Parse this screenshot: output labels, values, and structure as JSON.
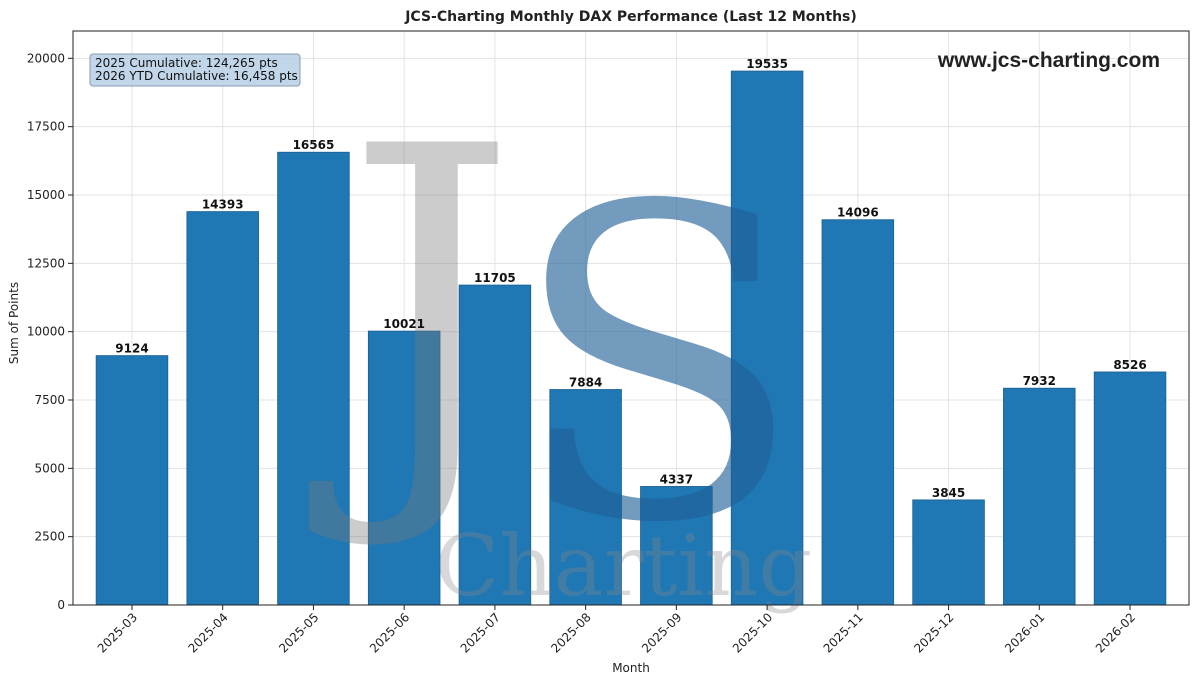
{
  "chart_data": {
    "type": "bar",
    "title": "JCS-Charting Monthly DAX Performance (Last 12 Months)",
    "xlabel": "Month",
    "ylabel": "Sum of Points",
    "categories": [
      "2025-03",
      "2025-04",
      "2025-05",
      "2025-06",
      "2025-07",
      "2025-08",
      "2025-09",
      "2025-10",
      "2025-11",
      "2025-12",
      "2026-01",
      "2026-02"
    ],
    "values": [
      9124,
      14393,
      16565,
      10021,
      11705,
      7884,
      4337,
      19535,
      14096,
      3845,
      7932,
      8526
    ],
    "ylim": [
      0,
      21000
    ],
    "yticks": [
      0,
      2500,
      5000,
      7500,
      10000,
      12500,
      15000,
      17500,
      20000
    ],
    "grid": true,
    "bar_color": "#1f77b4",
    "annotations": {
      "summary_line_1": "2025 Cumulative: 124,265 pts",
      "summary_line_2": "2026 YTD Cumulative: 16,458 pts",
      "website": "www.jcs-charting.com"
    }
  },
  "watermark": {
    "letter_j": "J",
    "letter_s": "S",
    "word": "Charting"
  }
}
